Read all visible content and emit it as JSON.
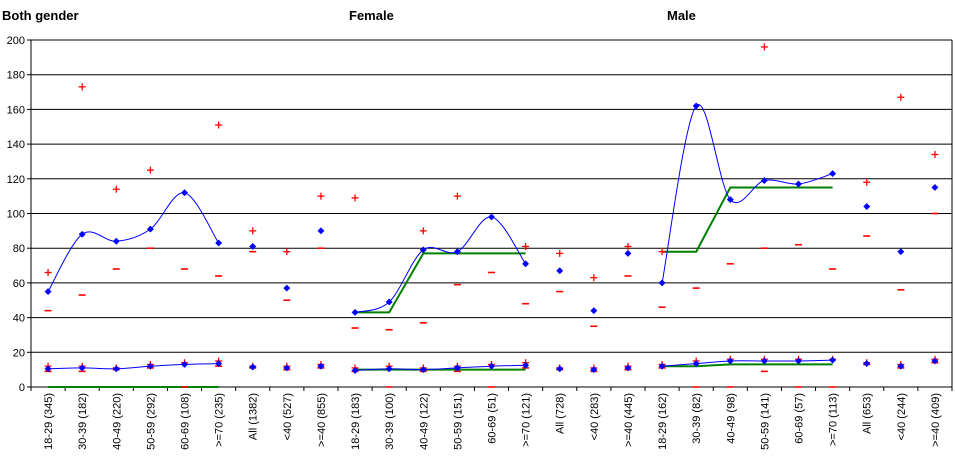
{
  "panel_titles": [
    "Both gender",
    "Female",
    "Male"
  ],
  "chart_data": {
    "type": "scatter",
    "ylim": [
      0,
      200
    ],
    "yticks": [
      0,
      20,
      40,
      60,
      80,
      100,
      120,
      140,
      160,
      180,
      200
    ],
    "grid": true,
    "colors": {
      "point": "#0000ff",
      "curve": "#0000ff",
      "bounds": "#ff0000",
      "fit": "#008000"
    },
    "categories": [
      "18-29 (345)",
      "30-39 (182)",
      "40-49 (220)",
      "50-59 (292)",
      "60-69 (108)",
      ">=70 (235)",
      "All (1382)",
      "<40 (527)",
      ">=40 (855)",
      "18-29 (183)",
      "30-39 (100)",
      "40-49 (122)",
      "50-59 (151)",
      "60-69 (51)",
      ">=70 (121)",
      "All (728)",
      "<40 (283)",
      ">=40 (445)",
      "18-29 (162)",
      "30-39 (82)",
      "40-49 (98)",
      "50-59 (141)",
      "60-69 (57)",
      ">=70 (113)",
      "All (653)",
      "<40 (244)",
      ">=40 (409)"
    ],
    "series": [
      {
        "values": [
          55,
          88,
          84,
          91,
          112,
          83,
          81,
          57,
          90,
          43,
          49,
          79,
          78,
          98,
          71,
          67,
          44,
          77,
          60,
          162,
          108,
          119,
          117,
          123,
          104,
          78,
          115
        ],
        "upper": [
          66,
          173,
          114,
          125,
          null,
          151,
          90,
          78,
          110,
          109,
          null,
          90,
          110,
          null,
          81,
          77,
          63,
          81,
          78,
          null,
          null,
          196,
          null,
          null,
          118,
          167,
          134
        ],
        "lower": [
          44,
          53,
          68,
          80,
          68,
          64,
          78,
          50,
          80,
          34,
          33,
          37,
          59,
          66,
          48,
          55,
          35,
          64,
          46,
          57,
          71,
          80,
          82,
          68,
          87,
          56,
          100
        ]
      },
      {
        "values": [
          10.5,
          11,
          10.5,
          12,
          13,
          13.5,
          11.5,
          11,
          12,
          9.5,
          10.5,
          10,
          11,
          12,
          12.5,
          10.5,
          10,
          11,
          12,
          13.5,
          15,
          15,
          15,
          15.5,
          13.5,
          12,
          15
        ],
        "upper": [
          12,
          12,
          11,
          13,
          14,
          15,
          12,
          12,
          13,
          11,
          12,
          11,
          12,
          13,
          14,
          11,
          11,
          12,
          13,
          15,
          16,
          16,
          16,
          16,
          14,
          13,
          16
        ],
        "lower": [
          9,
          9,
          10,
          11,
          0,
          12,
          11,
          10,
          11,
          9,
          0,
          9,
          9,
          0,
          11,
          10,
          9,
          10,
          11,
          0,
          0,
          9,
          0,
          0,
          13,
          11,
          14
        ]
      }
    ],
    "fit_lines": [
      {
        "x": [
          0,
          1,
          2,
          3,
          4,
          5
        ],
        "values": [
          0,
          0,
          0,
          0,
          0,
          0
        ]
      },
      {
        "x": [
          9,
          10,
          11,
          12,
          13,
          14
        ],
        "values": [
          43,
          43,
          77,
          77,
          77,
          77
        ]
      },
      {
        "x": [
          9,
          10,
          11,
          12,
          13,
          14
        ],
        "values": [
          10,
          10,
          10,
          10,
          10,
          10
        ]
      },
      {
        "x": [
          18,
          19,
          20,
          21,
          22,
          23
        ],
        "values": [
          78,
          78,
          115,
          115,
          115,
          115
        ]
      },
      {
        "x": [
          18,
          19,
          20,
          21,
          22,
          23
        ],
        "values": [
          12,
          12,
          13,
          13,
          13,
          13
        ]
      }
    ],
    "curve_groups": [
      [
        0,
        5
      ],
      [
        9,
        14
      ],
      [
        18,
        23
      ]
    ]
  }
}
